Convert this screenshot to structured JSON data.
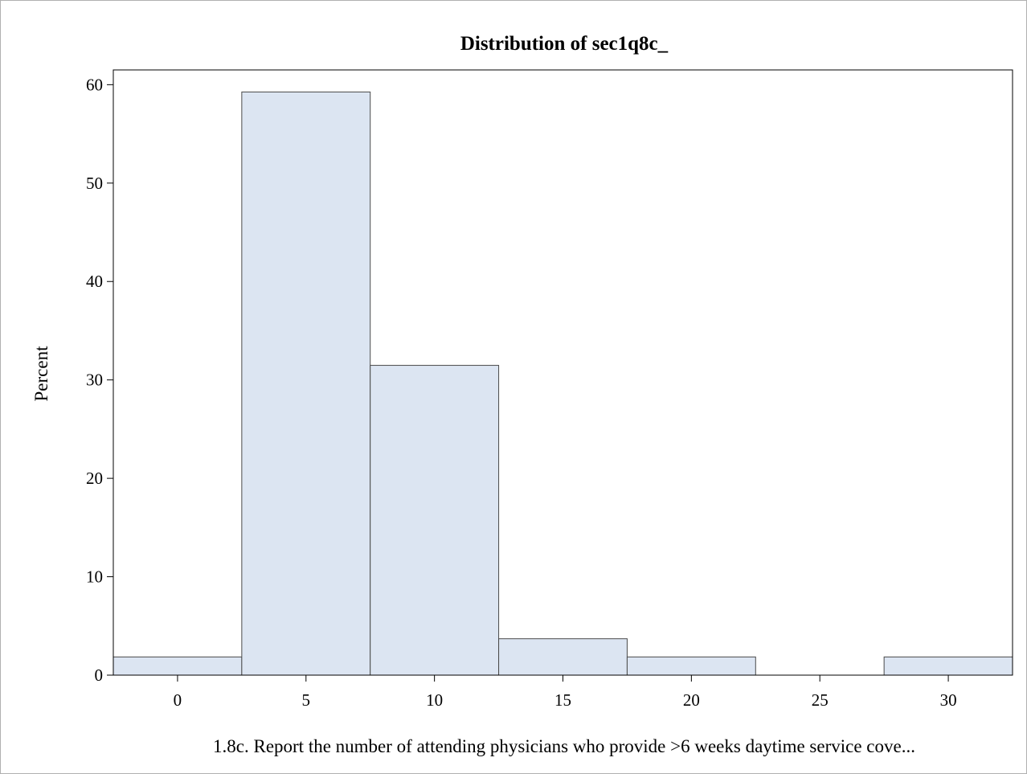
{
  "chart_data": {
    "type": "bar",
    "title": "Distribution of sec1q8c_",
    "xlabel": "1.8c.  Report the number of attending physicians who provide >6 weeks daytime service cove...",
    "ylabel": "Percent",
    "bin_width": 5,
    "bin_midpoints": [
      0,
      5,
      10,
      15,
      20,
      25,
      30
    ],
    "values": [
      1.85,
      59.26,
      31.48,
      3.7,
      1.85,
      0,
      1.85
    ],
    "x_ticks": [
      0,
      5,
      10,
      15,
      20,
      25,
      30
    ],
    "y_ticks": [
      0,
      10,
      20,
      30,
      40,
      50,
      60
    ],
    "xlim": [
      -2.5,
      32.5
    ],
    "ylim": [
      0,
      61.5
    ],
    "grid": false,
    "colors": {
      "bar_fill": "#dce5f2",
      "bar_edge": "#4a4a4a"
    }
  }
}
